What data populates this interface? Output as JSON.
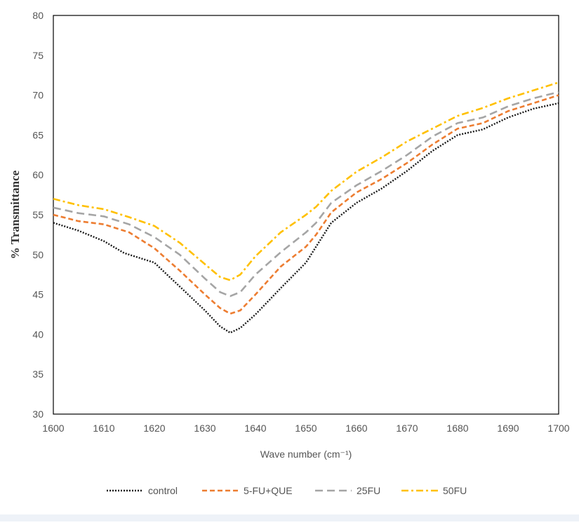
{
  "chart_data": {
    "type": "line",
    "title": "",
    "xlabel": "Wave number (cm⁻¹)",
    "ylabel": "% Transmittance",
    "xlim": [
      1600,
      1700
    ],
    "ylim": [
      30,
      80
    ],
    "x_ticks": [
      "1600",
      "1610",
      "1620",
      "1630",
      "1640",
      "1650",
      "1660",
      "1670",
      "1680",
      "1690",
      "1700"
    ],
    "y_ticks": [
      "30",
      "35",
      "40",
      "45",
      "50",
      "55",
      "60",
      "65",
      "70",
      "75",
      "80"
    ],
    "grid": false,
    "legend_position": "bottom",
    "series": [
      {
        "name": "control",
        "color": "#1a1a1a",
        "dash": "dotted",
        "points": [
          [
            1600,
            54.0
          ],
          [
            1605,
            53.0
          ],
          [
            1610,
            51.7
          ],
          [
            1614,
            50.2
          ],
          [
            1620,
            49.0
          ],
          [
            1625,
            46.0
          ],
          [
            1630,
            43.0
          ],
          [
            1633,
            41.0
          ],
          [
            1635,
            40.2
          ],
          [
            1637,
            40.8
          ],
          [
            1640,
            42.5
          ],
          [
            1645,
            45.8
          ],
          [
            1650,
            49.0
          ],
          [
            1652,
            51.0
          ],
          [
            1655,
            54.0
          ],
          [
            1660,
            56.5
          ],
          [
            1665,
            58.3
          ],
          [
            1670,
            60.5
          ],
          [
            1675,
            63.0
          ],
          [
            1680,
            65.0
          ],
          [
            1685,
            65.7
          ],
          [
            1690,
            67.2
          ],
          [
            1695,
            68.3
          ],
          [
            1700,
            69.0
          ]
        ]
      },
      {
        "name": "5-FU+QUE",
        "color": "#ed7d31",
        "dash": "dashed",
        "points": [
          [
            1600,
            55.0
          ],
          [
            1605,
            54.2
          ],
          [
            1610,
            53.8
          ],
          [
            1615,
            52.8
          ],
          [
            1620,
            50.8
          ],
          [
            1625,
            48.0
          ],
          [
            1630,
            45.0
          ],
          [
            1633,
            43.3
          ],
          [
            1635,
            42.6
          ],
          [
            1637,
            43.0
          ],
          [
            1640,
            45.0
          ],
          [
            1645,
            48.5
          ],
          [
            1650,
            51.0
          ],
          [
            1652,
            52.5
          ],
          [
            1655,
            55.3
          ],
          [
            1660,
            57.8
          ],
          [
            1665,
            59.5
          ],
          [
            1670,
            61.5
          ],
          [
            1675,
            63.8
          ],
          [
            1680,
            65.8
          ],
          [
            1685,
            66.5
          ],
          [
            1690,
            68.0
          ],
          [
            1695,
            69.0
          ],
          [
            1700,
            70.0
          ]
        ]
      },
      {
        "name": "25FU",
        "color": "#a5a5a5",
        "dash": "longdash",
        "points": [
          [
            1600,
            55.9
          ],
          [
            1605,
            55.2
          ],
          [
            1610,
            54.8
          ],
          [
            1615,
            53.8
          ],
          [
            1620,
            52.2
          ],
          [
            1625,
            50.0
          ],
          [
            1630,
            47.0
          ],
          [
            1633,
            45.3
          ],
          [
            1635,
            44.8
          ],
          [
            1637,
            45.3
          ],
          [
            1640,
            47.5
          ],
          [
            1645,
            50.3
          ],
          [
            1650,
            52.8
          ],
          [
            1652,
            54.0
          ],
          [
            1655,
            56.5
          ],
          [
            1660,
            58.7
          ],
          [
            1665,
            60.5
          ],
          [
            1670,
            62.5
          ],
          [
            1675,
            64.8
          ],
          [
            1680,
            66.5
          ],
          [
            1685,
            67.2
          ],
          [
            1690,
            68.6
          ],
          [
            1695,
            69.6
          ],
          [
            1700,
            70.4
          ]
        ]
      },
      {
        "name": "50FU",
        "color": "#ffc000",
        "dash": "dashdot",
        "points": [
          [
            1600,
            57.0
          ],
          [
            1605,
            56.2
          ],
          [
            1610,
            55.7
          ],
          [
            1615,
            54.7
          ],
          [
            1620,
            53.6
          ],
          [
            1625,
            51.5
          ],
          [
            1630,
            48.8
          ],
          [
            1633,
            47.2
          ],
          [
            1635,
            46.8
          ],
          [
            1637,
            47.5
          ],
          [
            1640,
            49.8
          ],
          [
            1645,
            52.8
          ],
          [
            1650,
            55.0
          ],
          [
            1652,
            56.0
          ],
          [
            1655,
            58.0
          ],
          [
            1660,
            60.4
          ],
          [
            1665,
            62.2
          ],
          [
            1670,
            64.2
          ],
          [
            1675,
            65.8
          ],
          [
            1680,
            67.4
          ],
          [
            1685,
            68.4
          ],
          [
            1690,
            69.6
          ],
          [
            1695,
            70.6
          ],
          [
            1700,
            71.6
          ]
        ]
      }
    ]
  }
}
